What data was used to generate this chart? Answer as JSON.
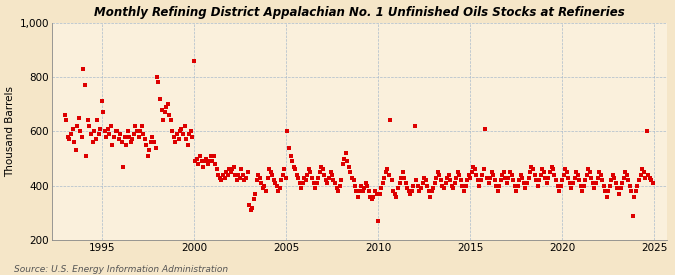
{
  "title": "Monthly Refining District Appalachian No. 1 Unfinished Oils Stocks at Refineries",
  "ylabel": "Thousand Barrels",
  "source": "Source: U.S. Energy Information Administration",
  "bg_color": "#F5E6C8",
  "plot_bg_color": "#FAF0DC",
  "marker_color": "#DD0000",
  "grid_color": "#AABBCC",
  "ylim": [
    200,
    1000
  ],
  "xlim": [
    1992.3,
    2025.7
  ],
  "yticks": [
    200,
    400,
    600,
    800,
    1000
  ],
  "ytick_labels": [
    "200",
    "400",
    "600",
    "800",
    "1,000"
  ],
  "xticks": [
    1995,
    2000,
    2005,
    2010,
    2015,
    2020,
    2025
  ],
  "data": [
    [
      1993.0,
      660
    ],
    [
      1993.08,
      640
    ],
    [
      1993.17,
      580
    ],
    [
      1993.25,
      570
    ],
    [
      1993.33,
      590
    ],
    [
      1993.42,
      610
    ],
    [
      1993.5,
      560
    ],
    [
      1993.58,
      530
    ],
    [
      1993.67,
      620
    ],
    [
      1993.75,
      650
    ],
    [
      1993.83,
      600
    ],
    [
      1993.92,
      580
    ],
    [
      1994.0,
      830
    ],
    [
      1994.08,
      770
    ],
    [
      1994.17,
      510
    ],
    [
      1994.25,
      640
    ],
    [
      1994.33,
      620
    ],
    [
      1994.42,
      590
    ],
    [
      1994.5,
      560
    ],
    [
      1994.58,
      600
    ],
    [
      1994.67,
      570
    ],
    [
      1994.75,
      640
    ],
    [
      1994.83,
      590
    ],
    [
      1994.92,
      610
    ],
    [
      1995.0,
      710
    ],
    [
      1995.08,
      670
    ],
    [
      1995.17,
      600
    ],
    [
      1995.25,
      580
    ],
    [
      1995.33,
      610
    ],
    [
      1995.42,
      590
    ],
    [
      1995.5,
      620
    ],
    [
      1995.58,
      550
    ],
    [
      1995.67,
      580
    ],
    [
      1995.75,
      600
    ],
    [
      1995.83,
      600
    ],
    [
      1995.92,
      570
    ],
    [
      1996.0,
      590
    ],
    [
      1996.08,
      560
    ],
    [
      1996.17,
      470
    ],
    [
      1996.25,
      580
    ],
    [
      1996.33,
      550
    ],
    [
      1996.42,
      600
    ],
    [
      1996.5,
      580
    ],
    [
      1996.58,
      560
    ],
    [
      1996.67,
      570
    ],
    [
      1996.75,
      590
    ],
    [
      1996.83,
      620
    ],
    [
      1996.92,
      600
    ],
    [
      1997.0,
      580
    ],
    [
      1997.08,
      600
    ],
    [
      1997.17,
      620
    ],
    [
      1997.25,
      590
    ],
    [
      1997.33,
      570
    ],
    [
      1997.42,
      550
    ],
    [
      1997.5,
      510
    ],
    [
      1997.58,
      530
    ],
    [
      1997.67,
      560
    ],
    [
      1997.75,
      580
    ],
    [
      1997.83,
      560
    ],
    [
      1997.92,
      540
    ],
    [
      1998.0,
      800
    ],
    [
      1998.08,
      780
    ],
    [
      1998.17,
      720
    ],
    [
      1998.25,
      680
    ],
    [
      1998.33,
      640
    ],
    [
      1998.42,
      670
    ],
    [
      1998.5,
      690
    ],
    [
      1998.58,
      700
    ],
    [
      1998.67,
      660
    ],
    [
      1998.75,
      640
    ],
    [
      1998.83,
      600
    ],
    [
      1998.92,
      580
    ],
    [
      1999.0,
      560
    ],
    [
      1999.08,
      590
    ],
    [
      1999.17,
      570
    ],
    [
      1999.25,
      600
    ],
    [
      1999.33,
      610
    ],
    [
      1999.42,
      590
    ],
    [
      1999.5,
      620
    ],
    [
      1999.58,
      570
    ],
    [
      1999.67,
      550
    ],
    [
      1999.75,
      590
    ],
    [
      1999.83,
      600
    ],
    [
      1999.92,
      580
    ],
    [
      2000.0,
      860
    ],
    [
      2000.08,
      490
    ],
    [
      2000.17,
      500
    ],
    [
      2000.25,
      480
    ],
    [
      2000.33,
      510
    ],
    [
      2000.42,
      490
    ],
    [
      2000.5,
      470
    ],
    [
      2000.58,
      490
    ],
    [
      2000.67,
      500
    ],
    [
      2000.75,
      480
    ],
    [
      2000.83,
      490
    ],
    [
      2000.92,
      510
    ],
    [
      2001.0,
      490
    ],
    [
      2001.08,
      510
    ],
    [
      2001.17,
      480
    ],
    [
      2001.25,
      460
    ],
    [
      2001.33,
      440
    ],
    [
      2001.42,
      430
    ],
    [
      2001.5,
      420
    ],
    [
      2001.58,
      440
    ],
    [
      2001.67,
      430
    ],
    [
      2001.75,
      450
    ],
    [
      2001.83,
      440
    ],
    [
      2001.92,
      460
    ],
    [
      2002.0,
      450
    ],
    [
      2002.08,
      460
    ],
    [
      2002.17,
      470
    ],
    [
      2002.25,
      440
    ],
    [
      2002.33,
      420
    ],
    [
      2002.42,
      440
    ],
    [
      2002.5,
      430
    ],
    [
      2002.58,
      460
    ],
    [
      2002.67,
      440
    ],
    [
      2002.75,
      420
    ],
    [
      2002.83,
      430
    ],
    [
      2002.92,
      450
    ],
    [
      2003.0,
      330
    ],
    [
      2003.08,
      310
    ],
    [
      2003.17,
      320
    ],
    [
      2003.25,
      350
    ],
    [
      2003.33,
      370
    ],
    [
      2003.42,
      420
    ],
    [
      2003.5,
      440
    ],
    [
      2003.58,
      430
    ],
    [
      2003.67,
      410
    ],
    [
      2003.75,
      390
    ],
    [
      2003.83,
      400
    ],
    [
      2003.92,
      380
    ],
    [
      2004.0,
      430
    ],
    [
      2004.08,
      460
    ],
    [
      2004.17,
      450
    ],
    [
      2004.25,
      440
    ],
    [
      2004.33,
      420
    ],
    [
      2004.42,
      410
    ],
    [
      2004.5,
      400
    ],
    [
      2004.58,
      380
    ],
    [
      2004.67,
      390
    ],
    [
      2004.75,
      420
    ],
    [
      2004.83,
      440
    ],
    [
      2004.92,
      460
    ],
    [
      2005.0,
      430
    ],
    [
      2005.08,
      600
    ],
    [
      2005.17,
      540
    ],
    [
      2005.25,
      510
    ],
    [
      2005.33,
      490
    ],
    [
      2005.42,
      470
    ],
    [
      2005.5,
      460
    ],
    [
      2005.58,
      440
    ],
    [
      2005.67,
      430
    ],
    [
      2005.75,
      410
    ],
    [
      2005.83,
      390
    ],
    [
      2005.92,
      410
    ],
    [
      2006.0,
      430
    ],
    [
      2006.08,
      420
    ],
    [
      2006.17,
      440
    ],
    [
      2006.25,
      460
    ],
    [
      2006.33,
      450
    ],
    [
      2006.42,
      430
    ],
    [
      2006.5,
      410
    ],
    [
      2006.58,
      390
    ],
    [
      2006.67,
      410
    ],
    [
      2006.75,
      430
    ],
    [
      2006.83,
      450
    ],
    [
      2006.92,
      470
    ],
    [
      2007.0,
      460
    ],
    [
      2007.08,
      440
    ],
    [
      2007.17,
      420
    ],
    [
      2007.25,
      410
    ],
    [
      2007.33,
      430
    ],
    [
      2007.42,
      450
    ],
    [
      2007.5,
      440
    ],
    [
      2007.58,
      420
    ],
    [
      2007.67,
      410
    ],
    [
      2007.75,
      390
    ],
    [
      2007.83,
      380
    ],
    [
      2007.92,
      400
    ],
    [
      2008.0,
      420
    ],
    [
      2008.08,
      480
    ],
    [
      2008.17,
      500
    ],
    [
      2008.25,
      520
    ],
    [
      2008.33,
      490
    ],
    [
      2008.42,
      470
    ],
    [
      2008.5,
      450
    ],
    [
      2008.58,
      430
    ],
    [
      2008.67,
      420
    ],
    [
      2008.75,
      400
    ],
    [
      2008.83,
      380
    ],
    [
      2008.92,
      360
    ],
    [
      2009.0,
      380
    ],
    [
      2009.08,
      400
    ],
    [
      2009.17,
      380
    ],
    [
      2009.25,
      390
    ],
    [
      2009.33,
      410
    ],
    [
      2009.42,
      400
    ],
    [
      2009.5,
      380
    ],
    [
      2009.58,
      360
    ],
    [
      2009.67,
      350
    ],
    [
      2009.75,
      360
    ],
    [
      2009.83,
      380
    ],
    [
      2009.92,
      370
    ],
    [
      2010.0,
      270
    ],
    [
      2010.08,
      370
    ],
    [
      2010.17,
      390
    ],
    [
      2010.25,
      410
    ],
    [
      2010.33,
      430
    ],
    [
      2010.42,
      450
    ],
    [
      2010.5,
      460
    ],
    [
      2010.58,
      440
    ],
    [
      2010.67,
      640
    ],
    [
      2010.75,
      420
    ],
    [
      2010.83,
      380
    ],
    [
      2010.92,
      370
    ],
    [
      2011.0,
      360
    ],
    [
      2011.08,
      390
    ],
    [
      2011.17,
      410
    ],
    [
      2011.25,
      430
    ],
    [
      2011.33,
      450
    ],
    [
      2011.42,
      430
    ],
    [
      2011.5,
      410
    ],
    [
      2011.58,
      390
    ],
    [
      2011.67,
      380
    ],
    [
      2011.75,
      370
    ],
    [
      2011.83,
      380
    ],
    [
      2011.92,
      400
    ],
    [
      2012.0,
      620
    ],
    [
      2012.08,
      420
    ],
    [
      2012.17,
      400
    ],
    [
      2012.25,
      380
    ],
    [
      2012.33,
      390
    ],
    [
      2012.42,
      410
    ],
    [
      2012.5,
      430
    ],
    [
      2012.58,
      420
    ],
    [
      2012.67,
      400
    ],
    [
      2012.75,
      380
    ],
    [
      2012.83,
      360
    ],
    [
      2012.92,
      380
    ],
    [
      2013.0,
      390
    ],
    [
      2013.08,
      410
    ],
    [
      2013.17,
      430
    ],
    [
      2013.25,
      450
    ],
    [
      2013.33,
      440
    ],
    [
      2013.42,
      420
    ],
    [
      2013.5,
      400
    ],
    [
      2013.58,
      390
    ],
    [
      2013.67,
      410
    ],
    [
      2013.75,
      430
    ],
    [
      2013.83,
      440
    ],
    [
      2013.92,
      420
    ],
    [
      2014.0,
      400
    ],
    [
      2014.08,
      390
    ],
    [
      2014.17,
      410
    ],
    [
      2014.25,
      430
    ],
    [
      2014.33,
      450
    ],
    [
      2014.42,
      440
    ],
    [
      2014.5,
      420
    ],
    [
      2014.58,
      400
    ],
    [
      2014.67,
      380
    ],
    [
      2014.75,
      400
    ],
    [
      2014.83,
      420
    ],
    [
      2014.92,
      440
    ],
    [
      2015.0,
      430
    ],
    [
      2015.08,
      450
    ],
    [
      2015.17,
      470
    ],
    [
      2015.25,
      460
    ],
    [
      2015.33,
      440
    ],
    [
      2015.42,
      420
    ],
    [
      2015.5,
      400
    ],
    [
      2015.58,
      420
    ],
    [
      2015.67,
      440
    ],
    [
      2015.75,
      460
    ],
    [
      2015.83,
      610
    ],
    [
      2015.92,
      430
    ],
    [
      2016.0,
      410
    ],
    [
      2016.08,
      430
    ],
    [
      2016.17,
      450
    ],
    [
      2016.25,
      440
    ],
    [
      2016.33,
      420
    ],
    [
      2016.42,
      400
    ],
    [
      2016.5,
      380
    ],
    [
      2016.58,
      400
    ],
    [
      2016.67,
      420
    ],
    [
      2016.75,
      440
    ],
    [
      2016.83,
      450
    ],
    [
      2016.92,
      430
    ],
    [
      2017.0,
      410
    ],
    [
      2017.08,
      430
    ],
    [
      2017.17,
      450
    ],
    [
      2017.25,
      440
    ],
    [
      2017.33,
      420
    ],
    [
      2017.42,
      400
    ],
    [
      2017.5,
      380
    ],
    [
      2017.58,
      400
    ],
    [
      2017.67,
      420
    ],
    [
      2017.75,
      440
    ],
    [
      2017.83,
      430
    ],
    [
      2017.92,
      410
    ],
    [
      2018.0,
      390
    ],
    [
      2018.08,
      410
    ],
    [
      2018.17,
      430
    ],
    [
      2018.25,
      450
    ],
    [
      2018.33,
      470
    ],
    [
      2018.42,
      460
    ],
    [
      2018.5,
      440
    ],
    [
      2018.58,
      420
    ],
    [
      2018.67,
      400
    ],
    [
      2018.75,
      420
    ],
    [
      2018.83,
      440
    ],
    [
      2018.92,
      460
    ],
    [
      2019.0,
      450
    ],
    [
      2019.08,
      430
    ],
    [
      2019.17,
      410
    ],
    [
      2019.25,
      430
    ],
    [
      2019.33,
      450
    ],
    [
      2019.42,
      470
    ],
    [
      2019.5,
      460
    ],
    [
      2019.58,
      440
    ],
    [
      2019.67,
      420
    ],
    [
      2019.75,
      400
    ],
    [
      2019.83,
      380
    ],
    [
      2019.92,
      400
    ],
    [
      2020.0,
      420
    ],
    [
      2020.08,
      440
    ],
    [
      2020.17,
      460
    ],
    [
      2020.25,
      450
    ],
    [
      2020.33,
      430
    ],
    [
      2020.42,
      410
    ],
    [
      2020.5,
      390
    ],
    [
      2020.58,
      410
    ],
    [
      2020.67,
      430
    ],
    [
      2020.75,
      450
    ],
    [
      2020.83,
      440
    ],
    [
      2020.92,
      420
    ],
    [
      2021.0,
      400
    ],
    [
      2021.08,
      380
    ],
    [
      2021.17,
      400
    ],
    [
      2021.25,
      420
    ],
    [
      2021.33,
      440
    ],
    [
      2021.42,
      460
    ],
    [
      2021.5,
      450
    ],
    [
      2021.58,
      430
    ],
    [
      2021.67,
      410
    ],
    [
      2021.75,
      390
    ],
    [
      2021.83,
      410
    ],
    [
      2021.92,
      430
    ],
    [
      2022.0,
      450
    ],
    [
      2022.08,
      440
    ],
    [
      2022.17,
      420
    ],
    [
      2022.25,
      400
    ],
    [
      2022.33,
      380
    ],
    [
      2022.42,
      360
    ],
    [
      2022.5,
      380
    ],
    [
      2022.58,
      400
    ],
    [
      2022.67,
      420
    ],
    [
      2022.75,
      440
    ],
    [
      2022.83,
      430
    ],
    [
      2022.92,
      410
    ],
    [
      2023.0,
      390
    ],
    [
      2023.08,
      370
    ],
    [
      2023.17,
      390
    ],
    [
      2023.25,
      410
    ],
    [
      2023.33,
      430
    ],
    [
      2023.42,
      450
    ],
    [
      2023.5,
      440
    ],
    [
      2023.58,
      420
    ],
    [
      2023.67,
      400
    ],
    [
      2023.75,
      380
    ],
    [
      2023.83,
      290
    ],
    [
      2023.92,
      360
    ],
    [
      2024.0,
      380
    ],
    [
      2024.08,
      400
    ],
    [
      2024.17,
      420
    ],
    [
      2024.25,
      440
    ],
    [
      2024.33,
      460
    ],
    [
      2024.42,
      450
    ],
    [
      2024.5,
      430
    ],
    [
      2024.58,
      600
    ],
    [
      2024.67,
      440
    ],
    [
      2024.75,
      430
    ],
    [
      2024.83,
      420
    ],
    [
      2024.92,
      410
    ]
  ]
}
